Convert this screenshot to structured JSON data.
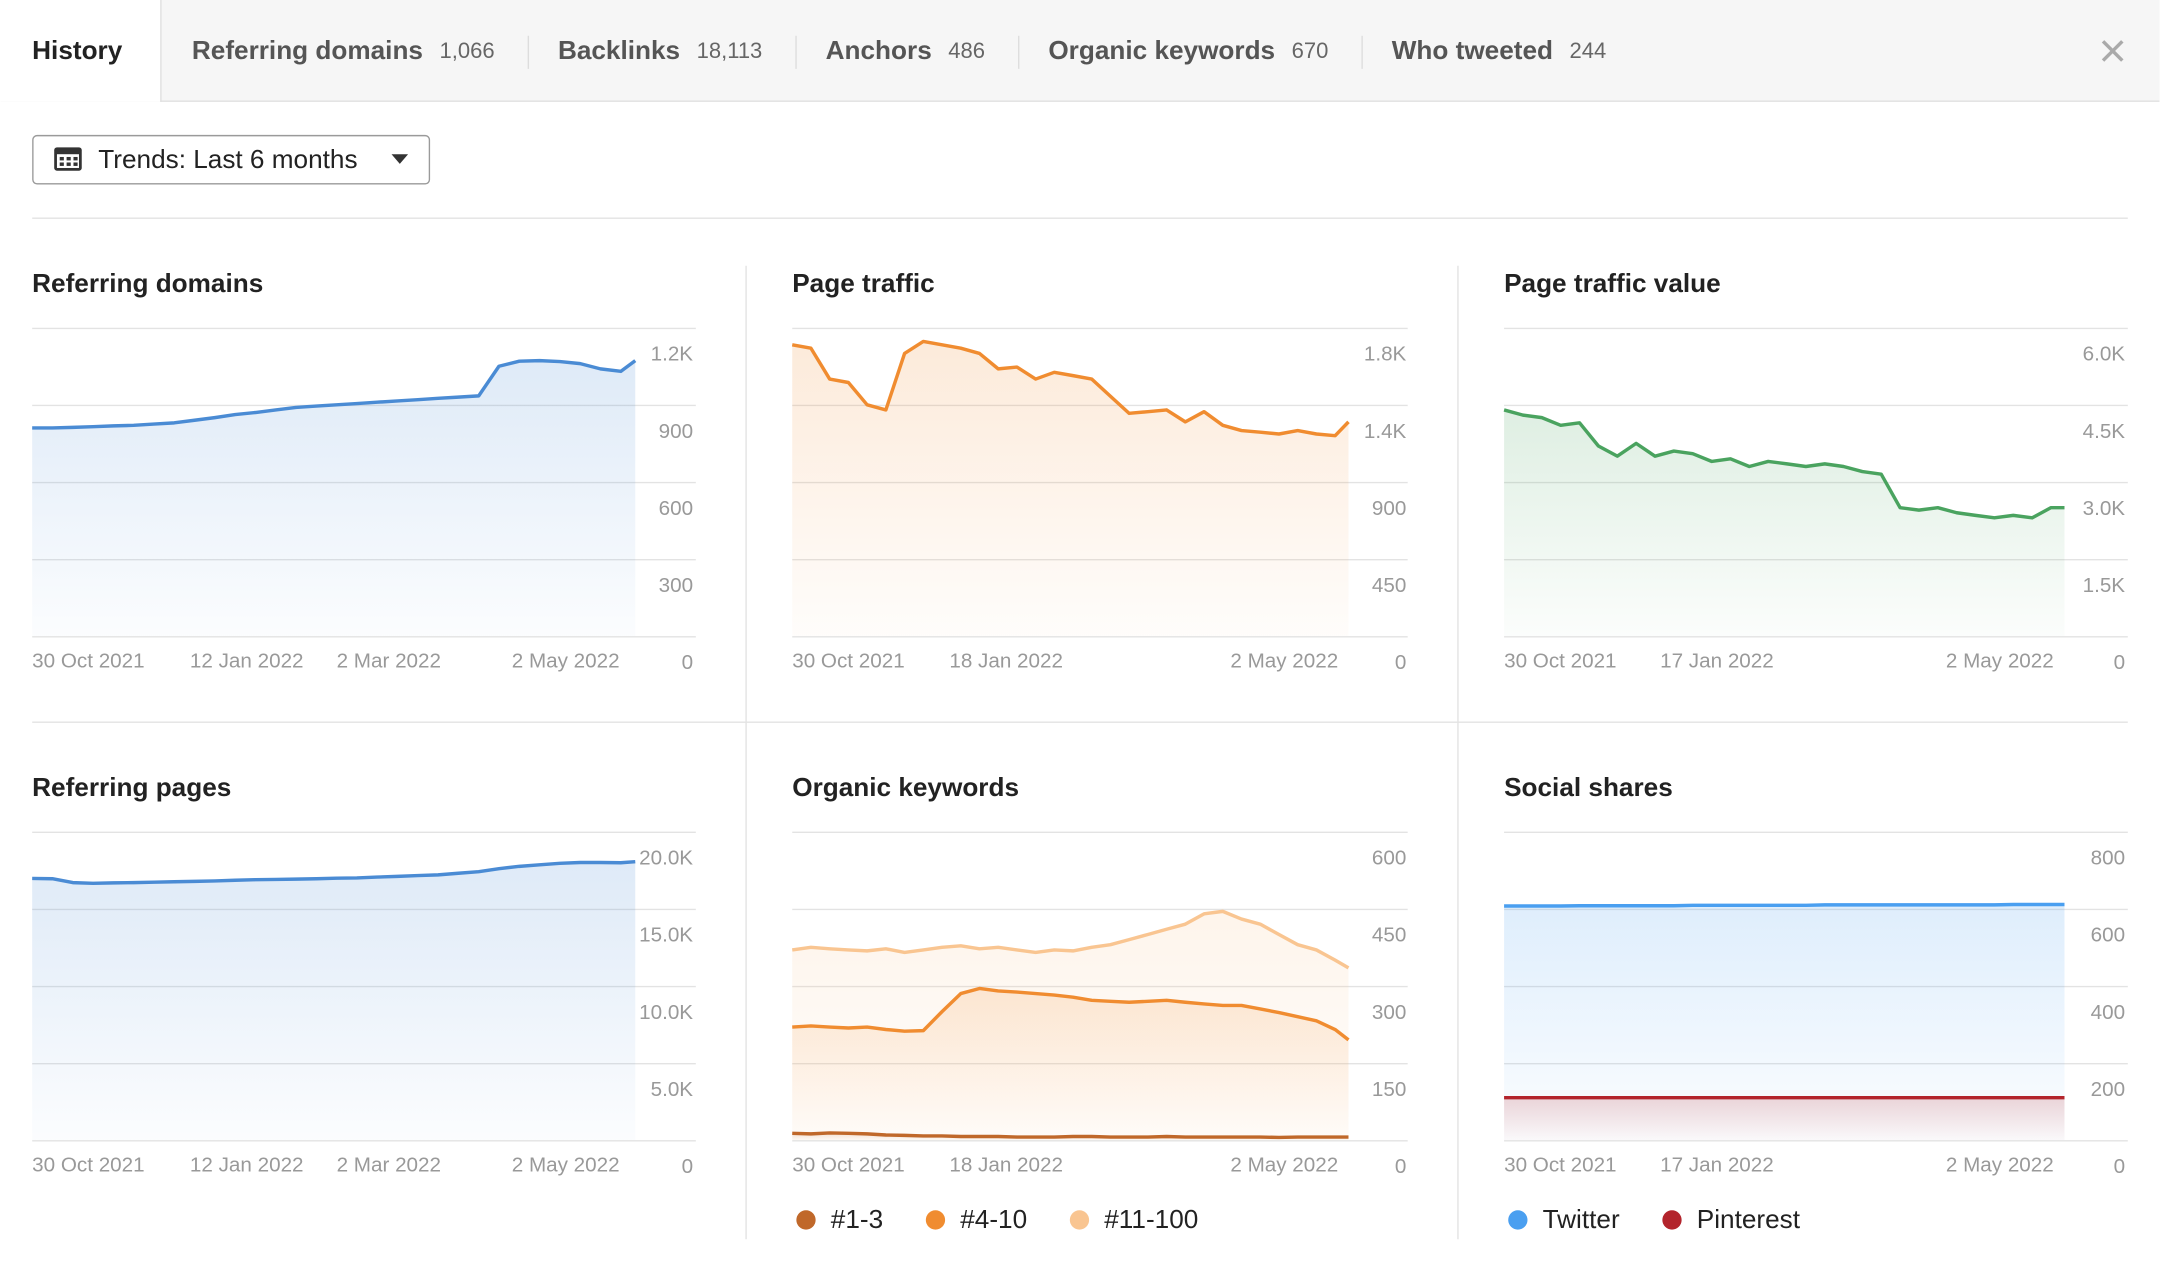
{
  "tabs": [
    {
      "label": "History"
    },
    {
      "label": "Referring domains",
      "count": "1,066"
    },
    {
      "label": "Backlinks",
      "count": "18,113"
    },
    {
      "label": "Anchors",
      "count": "486"
    },
    {
      "label": "Organic keywords",
      "count": "670"
    },
    {
      "label": "Who tweeted",
      "count": "244"
    }
  ],
  "trends_button": "Trends: Last 6 months",
  "chart_data": [
    {
      "type": "line",
      "title": "Referring domains",
      "x": [
        "2021-10-30",
        "2021-11-06",
        "2021-11-13",
        "2021-11-20",
        "2021-11-27",
        "2021-12-04",
        "2021-12-11",
        "2021-12-18",
        "2021-12-25",
        "2022-01-01",
        "2022-01-08",
        "2022-01-15",
        "2022-01-22",
        "2022-01-29",
        "2022-02-05",
        "2022-02-12",
        "2022-02-19",
        "2022-02-26",
        "2022-03-05",
        "2022-03-12",
        "2022-03-19",
        "2022-03-26",
        "2022-04-02",
        "2022-04-09",
        "2022-04-16",
        "2022-04-23",
        "2022-04-30",
        "2022-05-07",
        "2022-05-14",
        "2022-05-21",
        "2022-05-26"
      ],
      "xlim": [
        "2021-10-30",
        "2022-05-26"
      ],
      "xticks": [
        {
          "value": "2021-10-30",
          "label": "30 Oct 2021"
        },
        {
          "value": "2022-01-12",
          "label": "12 Jan 2022"
        },
        {
          "value": "2022-03-02",
          "label": "2 Mar 2022"
        },
        {
          "value": "2022-05-02",
          "label": "2 May 2022"
        }
      ],
      "ylim": [
        0,
        1200
      ],
      "yticks": [
        0,
        300,
        600,
        900,
        {
          "value": 1200,
          "label": "1.2K"
        }
      ],
      "series": [
        {
          "color": "#4a8bd4",
          "values": [
            810,
            810,
            812,
            815,
            818,
            820,
            825,
            830,
            840,
            850,
            862,
            870,
            880,
            890,
            895,
            900,
            905,
            910,
            915,
            920,
            925,
            930,
            935,
            1050,
            1070,
            1072,
            1068,
            1060,
            1040,
            1030,
            1072
          ]
        }
      ]
    },
    {
      "type": "line",
      "title": "Page traffic",
      "x": [
        "2021-10-30",
        "2021-11-06",
        "2021-11-13",
        "2021-11-20",
        "2021-11-27",
        "2021-12-04",
        "2021-12-11",
        "2021-12-18",
        "2021-12-25",
        "2022-01-01",
        "2022-01-08",
        "2022-01-15",
        "2022-01-22",
        "2022-01-29",
        "2022-02-05",
        "2022-02-12",
        "2022-02-19",
        "2022-02-26",
        "2022-03-05",
        "2022-03-12",
        "2022-03-19",
        "2022-03-26",
        "2022-04-02",
        "2022-04-09",
        "2022-04-16",
        "2022-04-23",
        "2022-04-30",
        "2022-05-07",
        "2022-05-14",
        "2022-05-21",
        "2022-05-26"
      ],
      "xlim": [
        "2021-10-30",
        "2022-05-26"
      ],
      "xticks": [
        {
          "value": "2021-10-30",
          "label": "30 Oct 2021"
        },
        {
          "value": "2022-01-18",
          "label": "18 Jan 2022"
        },
        {
          "value": "2022-05-02",
          "label": "2 May 2022"
        }
      ],
      "ylim": [
        0,
        1800
      ],
      "yticks": [
        0,
        450,
        900,
        {
          "value": 1350,
          "label": "1.4K"
        },
        {
          "value": 1800,
          "label": "1.8K"
        }
      ],
      "series": [
        {
          "color": "#f08c30",
          "values": [
            1700,
            1680,
            1500,
            1480,
            1350,
            1320,
            1650,
            1720,
            1700,
            1680,
            1650,
            1560,
            1570,
            1500,
            1540,
            1520,
            1500,
            1400,
            1300,
            1310,
            1320,
            1250,
            1310,
            1230,
            1200,
            1190,
            1180,
            1200,
            1180,
            1170,
            1250
          ]
        }
      ]
    },
    {
      "type": "line",
      "title": "Page traffic value",
      "x": [
        "2021-10-30",
        "2021-11-06",
        "2021-11-13",
        "2021-11-20",
        "2021-11-27",
        "2021-12-04",
        "2021-12-11",
        "2021-12-18",
        "2021-12-25",
        "2022-01-01",
        "2022-01-08",
        "2022-01-15",
        "2022-01-22",
        "2022-01-29",
        "2022-02-05",
        "2022-02-12",
        "2022-02-19",
        "2022-02-26",
        "2022-03-05",
        "2022-03-12",
        "2022-03-19",
        "2022-03-26",
        "2022-04-02",
        "2022-04-09",
        "2022-04-16",
        "2022-04-23",
        "2022-04-30",
        "2022-05-07",
        "2022-05-14",
        "2022-05-21",
        "2022-05-26"
      ],
      "xlim": [
        "2021-10-30",
        "2022-05-26"
      ],
      "xticks": [
        {
          "value": "2021-10-30",
          "label": "30 Oct 2021"
        },
        {
          "value": "2022-01-17",
          "label": "17 Jan 2022"
        },
        {
          "value": "2022-05-02",
          "label": "2 May 2022"
        }
      ],
      "ylim": [
        0,
        6000
      ],
      "yticks": [
        0,
        {
          "value": 1500,
          "label": "1.5K"
        },
        {
          "value": 3000,
          "label": "3.0K"
        },
        {
          "value": 4500,
          "label": "4.5K"
        },
        {
          "value": 6000,
          "label": "6.0K"
        }
      ],
      "series": [
        {
          "color": "#4aa35f",
          "values": [
            4400,
            4300,
            4250,
            4100,
            4150,
            3700,
            3500,
            3750,
            3500,
            3600,
            3550,
            3400,
            3450,
            3300,
            3400,
            3350,
            3300,
            3350,
            3300,
            3200,
            3150,
            2500,
            2450,
            2500,
            2400,
            2350,
            2300,
            2350,
            2300,
            2500,
            2500
          ]
        }
      ]
    },
    {
      "type": "line",
      "title": "Referring pages",
      "x": [
        "2021-10-30",
        "2021-11-06",
        "2021-11-13",
        "2021-11-20",
        "2021-11-27",
        "2021-12-04",
        "2021-12-11",
        "2021-12-18",
        "2021-12-25",
        "2022-01-01",
        "2022-01-08",
        "2022-01-15",
        "2022-01-22",
        "2022-01-29",
        "2022-02-05",
        "2022-02-12",
        "2022-02-19",
        "2022-02-26",
        "2022-03-05",
        "2022-03-12",
        "2022-03-19",
        "2022-03-26",
        "2022-04-02",
        "2022-04-09",
        "2022-04-16",
        "2022-04-23",
        "2022-04-30",
        "2022-05-07",
        "2022-05-14",
        "2022-05-21",
        "2022-05-26"
      ],
      "xlim": [
        "2021-10-30",
        "2022-05-26"
      ],
      "xticks": [
        {
          "value": "2021-10-30",
          "label": "30 Oct 2021"
        },
        {
          "value": "2022-01-12",
          "label": "12 Jan 2022"
        },
        {
          "value": "2022-03-02",
          "label": "2 Mar 2022"
        },
        {
          "value": "2022-05-02",
          "label": "2 May 2022"
        }
      ],
      "ylim": [
        0,
        20000
      ],
      "yticks": [
        0,
        {
          "value": 5000,
          "label": "5.0K"
        },
        {
          "value": 10000,
          "label": "10.0K"
        },
        {
          "value": 15000,
          "label": "15.0K"
        },
        {
          "value": 20000,
          "label": "20.0K"
        }
      ],
      "series": [
        {
          "color": "#4a8bd4",
          "values": [
            16960,
            16950,
            16700,
            16650,
            16680,
            16700,
            16720,
            16750,
            16780,
            16800,
            16850,
            16880,
            16900,
            16920,
            16950,
            16980,
            17000,
            17050,
            17100,
            17150,
            17200,
            17300,
            17400,
            17600,
            17750,
            17850,
            17950,
            18000,
            18000,
            17980,
            18050
          ]
        }
      ]
    },
    {
      "type": "line",
      "title": "Organic keywords",
      "x": [
        "2021-10-30",
        "2021-11-06",
        "2021-11-13",
        "2021-11-20",
        "2021-11-27",
        "2021-12-04",
        "2021-12-11",
        "2021-12-18",
        "2021-12-25",
        "2022-01-01",
        "2022-01-08",
        "2022-01-15",
        "2022-01-22",
        "2022-01-29",
        "2022-02-05",
        "2022-02-12",
        "2022-02-19",
        "2022-02-26",
        "2022-03-05",
        "2022-03-12",
        "2022-03-19",
        "2022-03-26",
        "2022-04-02",
        "2022-04-09",
        "2022-04-16",
        "2022-04-23",
        "2022-04-30",
        "2022-05-07",
        "2022-05-14",
        "2022-05-21",
        "2022-05-26"
      ],
      "xlim": [
        "2021-10-30",
        "2022-05-26"
      ],
      "xticks": [
        {
          "value": "2021-10-30",
          "label": "30 Oct 2021"
        },
        {
          "value": "2022-01-18",
          "label": "18 Jan 2022"
        },
        {
          "value": "2022-05-02",
          "label": "2 May 2022"
        }
      ],
      "ylim": [
        0,
        600
      ],
      "yticks": [
        0,
        150,
        300,
        450,
        600
      ],
      "series": [
        {
          "name": "#1-3",
          "color": "#c0682a",
          "values": [
            13,
            12,
            14,
            13,
            12,
            10,
            9,
            8,
            8,
            7,
            7,
            7,
            6,
            6,
            6,
            7,
            7,
            6,
            6,
            6,
            7,
            6,
            6,
            6,
            6,
            6,
            5,
            6,
            6,
            6,
            6
          ]
        },
        {
          "name": "#4-10",
          "color": "#f08c30",
          "values": [
            220,
            222,
            220,
            218,
            220,
            215,
            212,
            213,
            250,
            285,
            295,
            290,
            288,
            285,
            282,
            278,
            272,
            270,
            268,
            270,
            272,
            268,
            265,
            262,
            262,
            255,
            248,
            240,
            232,
            215,
            195
          ]
        },
        {
          "name": "#11-100",
          "color": "#f9c591",
          "values": [
            370,
            375,
            372,
            370,
            368,
            372,
            365,
            370,
            375,
            378,
            372,
            375,
            370,
            365,
            370,
            368,
            375,
            380,
            390,
            400,
            410,
            420,
            440,
            445,
            430,
            420,
            400,
            380,
            370,
            350,
            335
          ]
        }
      ]
    },
    {
      "type": "line",
      "title": "Social shares",
      "x": [
        "2021-10-30",
        "2021-11-06",
        "2021-11-13",
        "2021-11-20",
        "2021-11-27",
        "2021-12-04",
        "2021-12-11",
        "2021-12-18",
        "2021-12-25",
        "2022-01-01",
        "2022-01-08",
        "2022-01-15",
        "2022-01-22",
        "2022-01-29",
        "2022-02-05",
        "2022-02-12",
        "2022-02-19",
        "2022-02-26",
        "2022-03-05",
        "2022-03-12",
        "2022-03-19",
        "2022-03-26",
        "2022-04-02",
        "2022-04-09",
        "2022-04-16",
        "2022-04-23",
        "2022-04-30",
        "2022-05-07",
        "2022-05-14",
        "2022-05-21",
        "2022-05-26"
      ],
      "xlim": [
        "2021-10-30",
        "2022-05-26"
      ],
      "xticks": [
        {
          "value": "2021-10-30",
          "label": "30 Oct 2021"
        },
        {
          "value": "2022-01-17",
          "label": "17 Jan 2022"
        },
        {
          "value": "2022-05-02",
          "label": "2 May 2022"
        }
      ],
      "ylim": [
        0,
        800
      ],
      "yticks": [
        0,
        200,
        400,
        600,
        800
      ],
      "series": [
        {
          "name": "Twitter",
          "color": "#4a9ff0",
          "values": [
            607,
            607,
            607,
            607,
            608,
            608,
            608,
            608,
            608,
            608,
            609,
            609,
            609,
            609,
            609,
            609,
            609,
            610,
            610,
            610,
            610,
            610,
            610,
            610,
            610,
            610,
            610,
            611,
            611,
            611,
            611
          ]
        },
        {
          "name": "Pinterest",
          "color": "#b3242c",
          "values": [
            110,
            110,
            110,
            110,
            110,
            110,
            110,
            110,
            110,
            110,
            110,
            110,
            110,
            110,
            110,
            110,
            110,
            110,
            110,
            110,
            110,
            110,
            110,
            110,
            110,
            110,
            110,
            110,
            110,
            110,
            110
          ]
        }
      ]
    }
  ]
}
